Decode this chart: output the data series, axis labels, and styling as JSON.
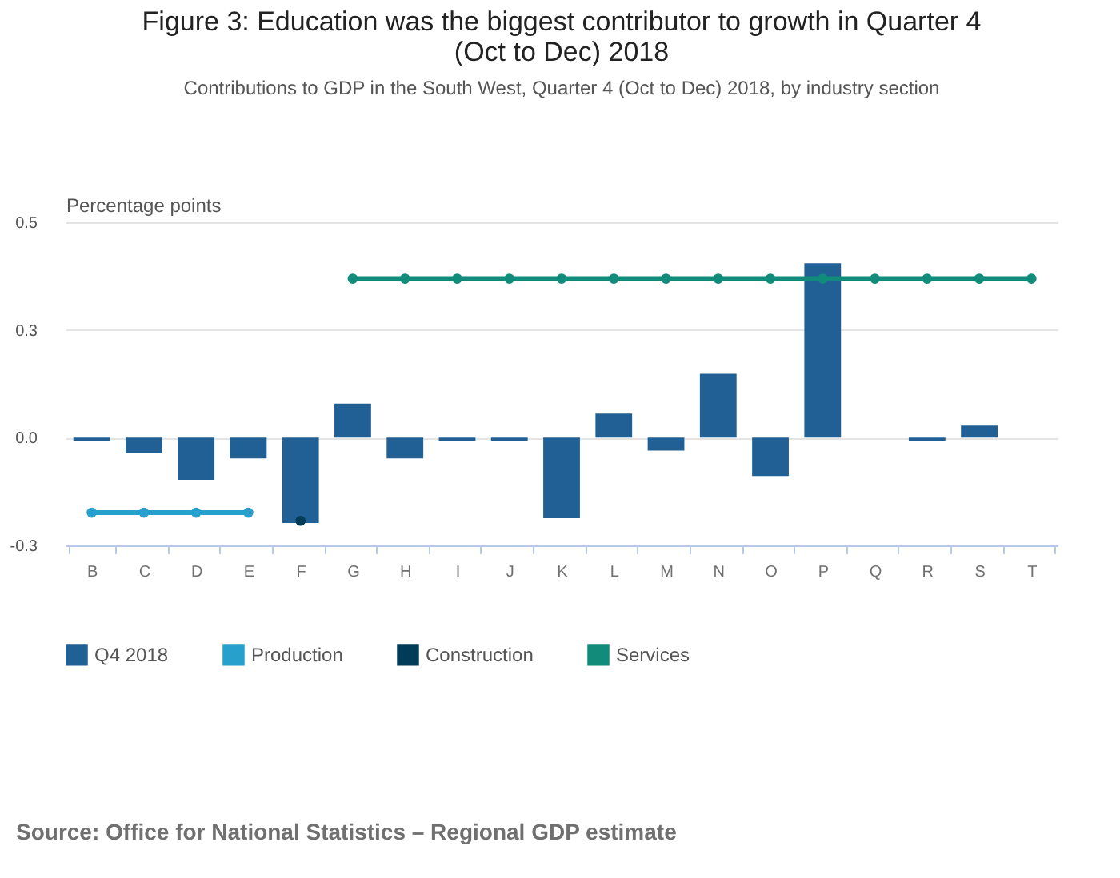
{
  "chart_data": {
    "type": "bar",
    "title": "Figure 3: Education was the biggest contributor to growth in Quarter 4 (Oct to Dec) 2018",
    "subtitle": "Contributions to GDP in the South West, Quarter 4 (Oct to Dec) 2018, by industry section",
    "ylabel": "Percentage points",
    "annotations": [
      "Source: Office for National Statistics – Regional GDP estimate"
    ],
    "categories": [
      "B",
      "C",
      "D",
      "E",
      "F",
      "G",
      "H",
      "I",
      "J",
      "K",
      "L",
      "M",
      "N",
      "O",
      "P",
      "Q",
      "R",
      "S",
      "T"
    ],
    "series": [
      {
        "name": "Q4 2018",
        "color": "#206095",
        "values": [
          -0.007,
          -0.036,
          -0.098,
          -0.048,
          -0.198,
          0.079,
          -0.048,
          -0.007,
          -0.007,
          -0.187,
          0.056,
          -0.03,
          0.148,
          -0.089,
          0.405,
          0,
          -0.007,
          0.028,
          null
        ]
      },
      {
        "name": "Production",
        "type": "line",
        "color": "#27a0cc",
        "line_style": "solid",
        "values": [
          -0.174,
          -0.174,
          -0.174,
          -0.174,
          null,
          null,
          null,
          null,
          null,
          null,
          null,
          null,
          null,
          null,
          null,
          null,
          null,
          null,
          null
        ]
      },
      {
        "name": "Construction",
        "type": "line",
        "color": "#003c57",
        "line_style": "dotted",
        "values": [
          null,
          null,
          null,
          null,
          -0.193,
          null,
          null,
          null,
          null,
          null,
          null,
          null,
          null,
          null,
          null,
          null,
          null,
          null,
          null
        ]
      },
      {
        "name": "Services",
        "type": "line",
        "color": "#118c7b",
        "line_style": "solid",
        "values": [
          null,
          null,
          null,
          null,
          null,
          0.369,
          0.369,
          0.369,
          0.369,
          0.369,
          0.369,
          0.369,
          0.369,
          0.369,
          0.369,
          0.369,
          0.369,
          0.369,
          0.369
        ]
      }
    ],
    "ylim": [
      -0.25,
      0.5
    ],
    "yticks": [
      {
        "value": -0.25,
        "label": "-0.3"
      },
      {
        "value": 0,
        "label": "0.0"
      },
      {
        "value": 0.25,
        "label": "0.3"
      },
      {
        "value": 0.5,
        "label": "0.5"
      }
    ],
    "grid": "y",
    "legend": "bottom",
    "marker": "circle"
  }
}
